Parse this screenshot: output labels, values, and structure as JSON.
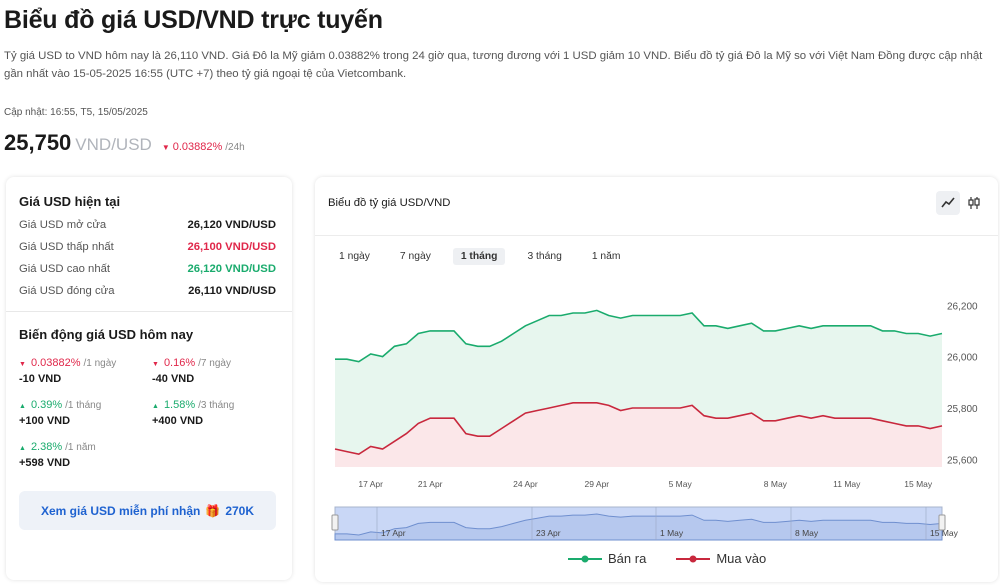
{
  "page": {
    "title": "Biểu đồ giá USD/VND trực tuyến",
    "description": "Tỷ giá USD to VND hôm nay là 26,110 VND. Giá Đô la Mỹ giảm 0.03882% trong 24 giờ qua, tương đương với 1 USD giảm 10 VND. Biểu đồ tỷ giá Đô la Mỹ so với Việt Nam Đồng được cập nhật gần nhất vào 15-05-2025 16:55 (UTC +7) theo tỷ giá ngoại tệ của Vietcombank.",
    "updated": "Cập nhật: 16:55, T5, 15/05/2025",
    "price": "25,750",
    "price_unit": "VND/USD",
    "price_change": "0.03882%",
    "price_change_period": "/24h"
  },
  "current": {
    "title": "Giá USD hiện tại",
    "rows": [
      {
        "label": "Giá USD mở cửa",
        "value": "26,120 VND/USD"
      },
      {
        "label": "Giá USD thấp nhất",
        "value": "26,100 VND/USD"
      },
      {
        "label": "Giá USD cao nhất",
        "value": "26,120 VND/USD"
      },
      {
        "label": "Giá USD đóng cửa",
        "value": "26,110 VND/USD"
      }
    ]
  },
  "changes": {
    "title": "Biến động giá USD hôm nay",
    "items": [
      {
        "pct": "0.03882%",
        "period": "/1 ngày",
        "amount": "-10 VND"
      },
      {
        "pct": "0.16%",
        "period": "/7 ngày",
        "amount": "-40 VND"
      },
      {
        "pct": "0.39%",
        "period": "/1 tháng",
        "amount": "+100 VND"
      },
      {
        "pct": "1.58%",
        "period": "/3 tháng",
        "amount": "+400 VND"
      },
      {
        "pct": "2.38%",
        "period": "/1 năm",
        "amount": "+598 VND"
      }
    ],
    "cta": "Xem giá USD miễn phí nhận",
    "cta_gift": "🎁",
    "cta_reward": "270K"
  },
  "chart_panel": {
    "title": "Biểu đồ tỷ giá USD/VND",
    "tabs": [
      "1 ngày",
      "7 ngày",
      "1 tháng",
      "3 tháng",
      "1 năm"
    ],
    "active_tab": "1 tháng"
  },
  "chart_data": {
    "type": "area",
    "ylim": [
      25570,
      26240
    ],
    "yticks": [
      26200,
      26000,
      25800,
      25600
    ],
    "ytick_labels": [
      "26,200",
      "26,000",
      "25,800",
      "25,600"
    ],
    "x_labels": [
      {
        "i": 3,
        "label": "17 Apr"
      },
      {
        "i": 8,
        "label": "21 Apr"
      },
      {
        "i": 16,
        "label": "24 Apr"
      },
      {
        "i": 22,
        "label": "29 Apr"
      },
      {
        "i": 29,
        "label": "5 May"
      },
      {
        "i": 37,
        "label": "8 May"
      },
      {
        "i": 43,
        "label": "11 May"
      },
      {
        "i": 49,
        "label": "15 May"
      }
    ],
    "series": [
      {
        "name": "Bán ra",
        "color": "#1aab6d",
        "fill": "#e7f6ee",
        "values": [
          25990,
          25990,
          25980,
          26010,
          26000,
          26040,
          26050,
          26090,
          26100,
          26100,
          26100,
          26050,
          26040,
          26040,
          26060,
          26090,
          26120,
          26140,
          26160,
          26160,
          26170,
          26170,
          26180,
          26160,
          26150,
          26160,
          26160,
          26160,
          26160,
          26160,
          26170,
          26120,
          26120,
          26110,
          26120,
          26130,
          26100,
          26100,
          26110,
          26120,
          26110,
          26120,
          26120,
          26120,
          26120,
          26120,
          26100,
          26100,
          26090,
          26090,
          26080,
          26090
        ]
      },
      {
        "name": "Mua vào",
        "color": "#c8283d",
        "fill": "#fbe7e9",
        "values": [
          25640,
          25630,
          25620,
          25650,
          25640,
          25670,
          25700,
          25740,
          25760,
          25760,
          25760,
          25700,
          25690,
          25690,
          25720,
          25750,
          25780,
          25790,
          25800,
          25810,
          25820,
          25820,
          25820,
          25810,
          25790,
          25800,
          25800,
          25800,
          25800,
          25800,
          25810,
          25770,
          25760,
          25760,
          25770,
          25780,
          25750,
          25750,
          25760,
          25770,
          25760,
          25770,
          25760,
          25760,
          25760,
          25760,
          25750,
          25740,
          25730,
          25730,
          25720,
          25730
        ]
      }
    ],
    "navigator_labels": [
      "17 Apr",
      "23 Apr",
      "1 May",
      "8 May",
      "15 May"
    ],
    "legend": [
      "Bán ra",
      "Mua vào"
    ]
  },
  "colors": {
    "up": "#1aab6d",
    "down": "#e0274a",
    "link": "#1e62d0"
  }
}
